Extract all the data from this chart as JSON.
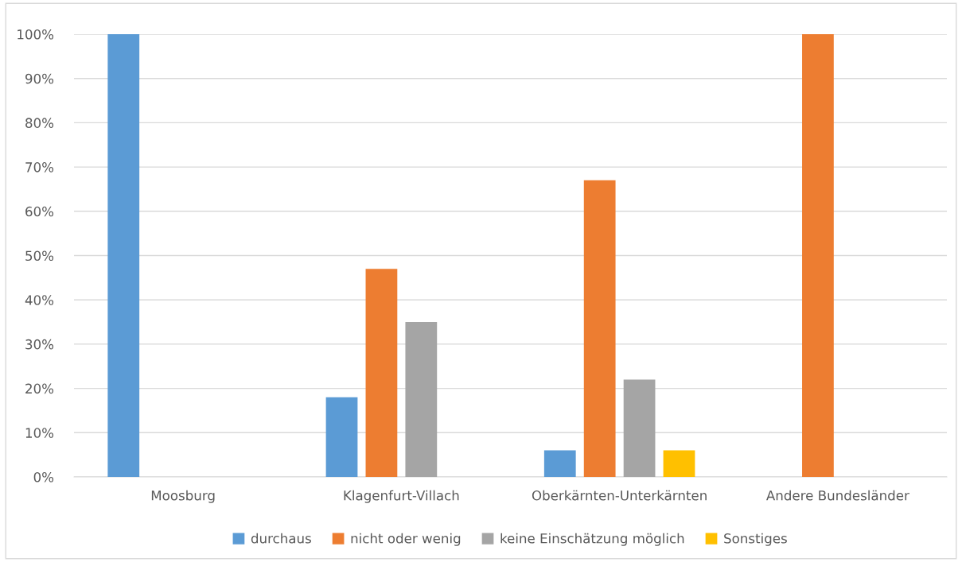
{
  "chart_data": {
    "type": "bar",
    "categories": [
      "Moosburg",
      "Klagenfurt-Villach",
      "Oberkärnten-Unterkärnten",
      "Andere Bundesländer"
    ],
    "series": [
      {
        "name": "durchaus",
        "color": "#5b9bd5",
        "values": [
          100,
          18,
          6,
          0
        ]
      },
      {
        "name": "nicht oder wenig",
        "color": "#ed7d31",
        "values": [
          0,
          47,
          67,
          100
        ]
      },
      {
        "name": "keine Einschätzung möglich",
        "color": "#a5a5a5",
        "values": [
          0,
          35,
          22,
          0
        ]
      },
      {
        "name": "Sonstiges",
        "color": "#ffc000",
        "values": [
          0,
          0,
          6,
          0
        ]
      }
    ],
    "ylim": [
      0,
      100
    ],
    "yticks": [
      {
        "value": 0,
        "label": "0%"
      },
      {
        "value": 10,
        "label": "10%"
      },
      {
        "value": 20,
        "label": "20%"
      },
      {
        "value": 30,
        "label": "30%"
      },
      {
        "value": 40,
        "label": "40%"
      },
      {
        "value": 50,
        "label": "50%"
      },
      {
        "value": 60,
        "label": "60%"
      },
      {
        "value": 70,
        "label": "70%"
      },
      {
        "value": 80,
        "label": "80%"
      },
      {
        "value": 90,
        "label": "90%"
      },
      {
        "value": 100,
        "label": "100%"
      }
    ],
    "grid": "y",
    "legend": "bottom"
  }
}
